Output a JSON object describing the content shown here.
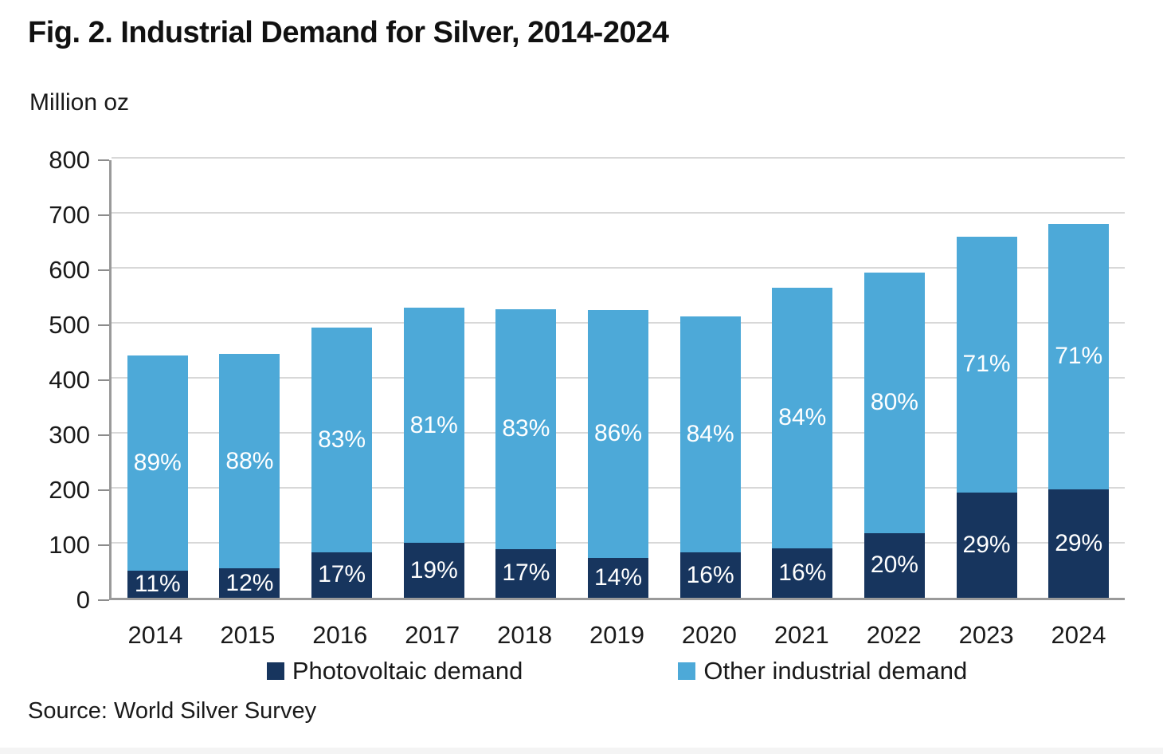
{
  "chart_data": {
    "type": "bar",
    "stacked": true,
    "title": "Fig. 2. Industrial Demand for Silver, 2014-2024",
    "unit_label": "Million oz",
    "xlabel": "",
    "ylabel": "Million oz",
    "ylim": [
      0,
      800
    ],
    "yticks": [
      0,
      100,
      200,
      300,
      400,
      500,
      600,
      700,
      800
    ],
    "grid": true,
    "legend_position": "bottom",
    "categories": [
      "2014",
      "2015",
      "2016",
      "2017",
      "2018",
      "2019",
      "2020",
      "2021",
      "2022",
      "2023",
      "2024"
    ],
    "series": [
      {
        "name": "Photovoltaic demand",
        "color": "#17355E",
        "values": [
          49,
          53,
          83,
          100,
          89,
          73,
          82,
          90,
          118,
          191,
          197
        ],
        "labels": [
          "11%",
          "12%",
          "17%",
          "19%",
          "17%",
          "14%",
          "16%",
          "16%",
          "20%",
          "29%",
          "29%"
        ]
      },
      {
        "name": "Other industrial demand",
        "color": "#4DA9D8",
        "values": [
          392,
          390,
          408,
          427,
          436,
          450,
          429,
          474,
          473,
          466,
          483
        ],
        "labels": [
          "89%",
          "88%",
          "83%",
          "81%",
          "83%",
          "86%",
          "84%",
          "84%",
          "80%",
          "71%",
          "71%"
        ]
      }
    ],
    "totals": [
      441,
      443,
      491,
      527,
      525,
      523,
      511,
      564,
      591,
      657,
      680
    ]
  },
  "source_note": "Source: World Silver Survey",
  "colors": {
    "photovoltaic": "#17355E",
    "other_industrial": "#4DA9D8",
    "gridline": "#d8d8d8",
    "axis": "#9a9a9a",
    "text": "#1a1a1a",
    "label_text": "#ffffff"
  }
}
